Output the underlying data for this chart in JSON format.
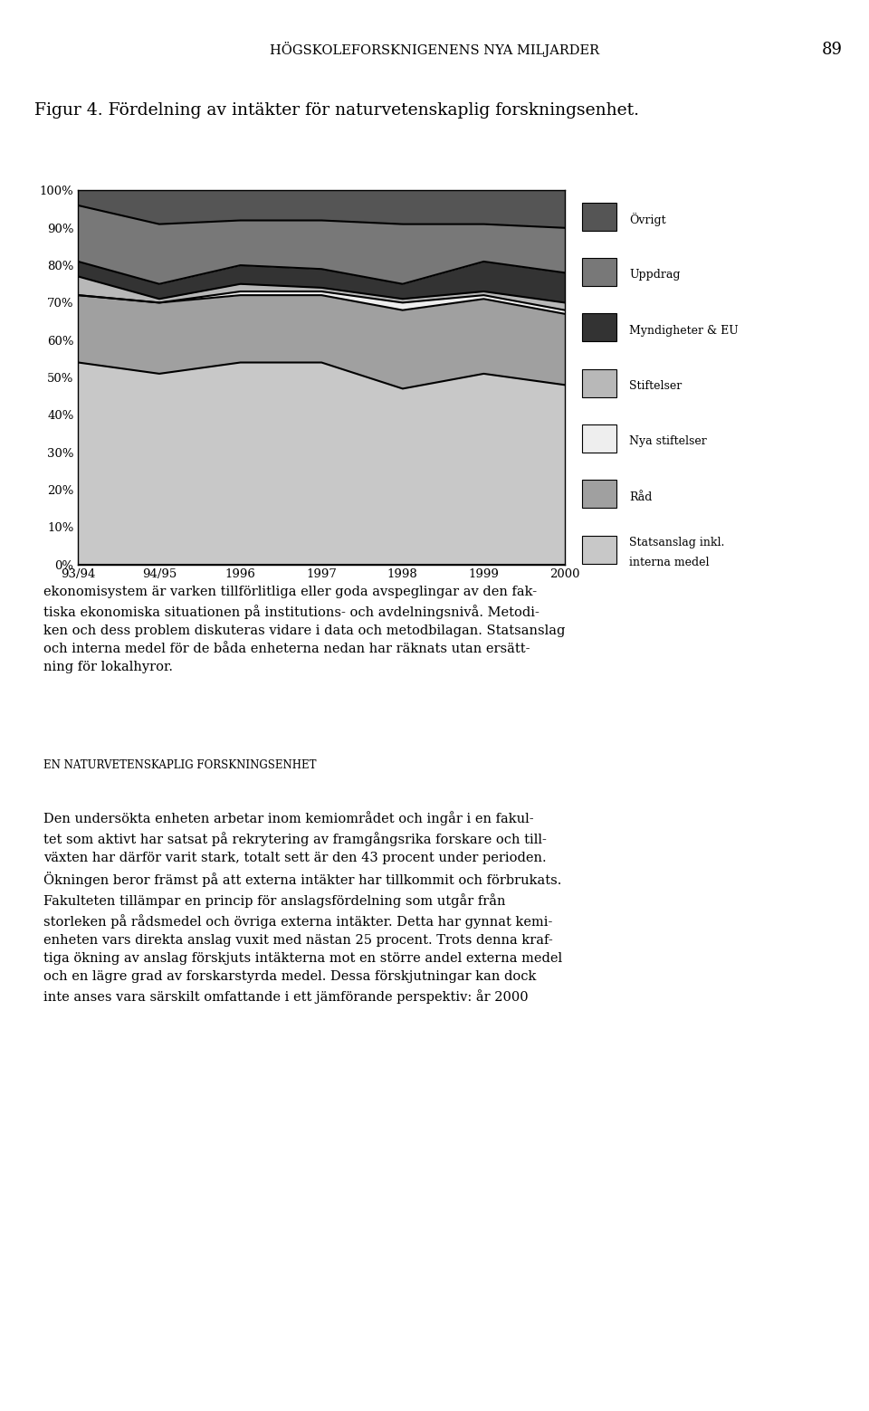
{
  "title_header": "HÖGSKOLEFORSKNIGENENS NYA MILJARDER",
  "page_number": "89",
  "fig_title": "Figur 4. Fördelning av intäkter för naturvetenskaplig forskningsenhet.",
  "years": [
    "93/94",
    "94/95",
    "1996",
    "1997",
    "1998",
    "1999",
    "2000"
  ],
  "series_order": [
    "Statsanslag inkl. interna medel",
    "Råd",
    "Nya stiftelser",
    "Stiftelser",
    "Myndigheter & EU",
    "Uppdrag",
    "Övrigt"
  ],
  "series": {
    "Statsanslag inkl. interna medel": [
      54,
      51,
      54,
      54,
      47,
      51,
      48
    ],
    "Råd": [
      18,
      19,
      18,
      18,
      21,
      20,
      19
    ],
    "Nya stiftelser": [
      0,
      0,
      1,
      1,
      2,
      1,
      1
    ],
    "Stiftelser": [
      5,
      1,
      2,
      1,
      1,
      1,
      2
    ],
    "Myndigheter & EU": [
      4,
      4,
      5,
      5,
      4,
      8,
      8
    ],
    "Uppdrag": [
      15,
      16,
      12,
      13,
      16,
      10,
      12
    ],
    "Övrigt": [
      4,
      9,
      8,
      8,
      9,
      9,
      10
    ]
  },
  "colors": {
    "Statsanslag inkl. interna medel": "#c8c8c8",
    "Råd": "#a0a0a0",
    "Nya stiftelser": "#eeeeee",
    "Stiftelser": "#b8b8b8",
    "Myndigheter & EU": "#333333",
    "Uppdrag": "#787878",
    "Övrigt": "#555555"
  },
  "legend_order": [
    "Övrigt",
    "Uppdrag",
    "Myndigheter & EU",
    "Stiftelser",
    "Nya stiftelser",
    "Råd",
    "Statsanslag inkl. interna medel"
  ],
  "legend_display": {
    "Statsanslag inkl. interna medel": [
      "Statsanslag inkl.",
      "interna medel"
    ],
    "Råd": [
      "Råd"
    ],
    "Nya stiftelser": [
      "Nya stiftelser"
    ],
    "Stiftelser": [
      "Stiftelser"
    ],
    "Myndigheter & EU": [
      "Myndigheter & EU"
    ],
    "Uppdrag": [
      "Uppdrag"
    ],
    "Övrigt": [
      "Övrigt"
    ]
  },
  "body_text_1": "ekonomisystem är varken tillförlitliga eller goda avspeglingar av den fak-\ntiska ekonomiska situationen på institutions- och avdelningsnivå. Metodi-\nken och dess problem diskuteras vidare i data och metodbilagan. Statsanslag\noch interna medel för de båda enheterna nedan har räknats utan ersätt-\nning för lokalhyror.",
  "section_header": "EN NATURVETENSKAPLIG FORSKNINGSENHET",
  "body_text_3": "Den undersökta enheten arbetar inom kemiområdet och ingår i en fakul-\ntet som aktivt har satsat på rekrytering av framgångsrika forskare och till-\nväxten har därför varit stark, totalt sett är den 43 procent under perioden.\nÖkningen beror främst på att externa intäkter har tillkommit och förbrukats.\nFakulteten tillämpar en princip för anslagsfördelning som utgår från\nstorleken på rådsmedel och övriga externa intäkter. Detta har gynnat kemi-\nenheten vars direkta anslag vuxit med nästan 25 procent. Trots denna kraf-\ntiga ökning av anslag förskjuts intäkterna mot en större andel externa medel\noch en lägre grad av forskarstyrda medel. Dessa förskjutningar kan dock\ninte anses vara särskilt omfattande i ett jämförande perspektiv: år 2000",
  "background_color": "#ffffff",
  "chart_bg": "#ffffff",
  "yticks": [
    0,
    10,
    20,
    30,
    40,
    50,
    60,
    70,
    80,
    90,
    100
  ],
  "ylim": [
    0,
    100
  ],
  "linewidth": 1.5
}
